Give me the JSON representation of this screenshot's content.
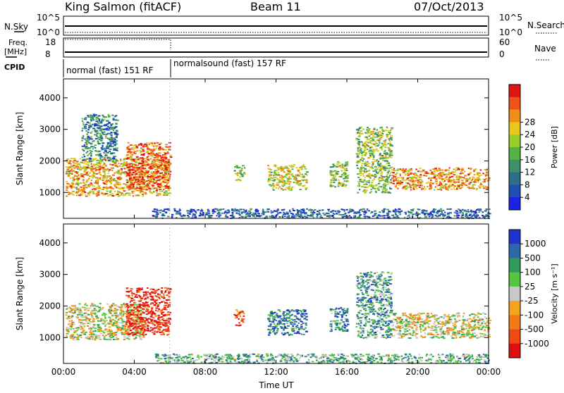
{
  "header": {
    "station": "King Salmon (fitACF)",
    "beam": "Beam 11",
    "date": "07/Oct/2013"
  },
  "top_panels": {
    "nsky_label": "N.Sky",
    "nsearch_label": "N.Search",
    "nsky_ticks": [
      "10^5",
      "10^0"
    ],
    "nsearch_ticks": [
      "10^5",
      "10^0"
    ],
    "freq_label": "Freq.",
    "freq_unit": "[MHz]",
    "freq_ticks": [
      "18",
      "8"
    ],
    "nave_label": "Nave",
    "nave_ticks": [
      "60",
      "0"
    ],
    "cpid_label": "CPID",
    "cpid_modes": [
      {
        "label": "normal (fast) 151 RF",
        "start_hour": 0,
        "end_hour": 6
      },
      {
        "label": "normalsound (fast) 157 RF",
        "start_hour": 6,
        "end_hour": 24
      }
    ]
  },
  "chart_data": [
    {
      "type": "heatmap",
      "name": "power",
      "ylabel": "Slant Range [km]",
      "xlabel": "",
      "xlim": [
        0,
        24
      ],
      "ylim": [
        180,
        4600
      ],
      "yticks": [
        "1000",
        "2000",
        "3000",
        "4000"
      ],
      "xticks": [
        "00:00",
        "04:00",
        "08:00",
        "12:00",
        "16:00",
        "20:00",
        "00:00"
      ],
      "colorbar": {
        "label": "Power [dB]",
        "ticks": [
          "4",
          "8",
          "12",
          "16",
          "20",
          "24",
          "28"
        ],
        "colors": [
          "#1a22e6",
          "#1e4fb0",
          "#2b6e8a",
          "#3e8f6a",
          "#52b246",
          "#9acc2a",
          "#e6c81e",
          "#ef8f1a",
          "#f0521a",
          "#e01414"
        ]
      },
      "echo_regions": [
        {
          "t0": 0.1,
          "t1": 6.0,
          "r0": 900,
          "r1": 2100,
          "level": 0.7
        },
        {
          "t0": 1.0,
          "t1": 3.0,
          "r0": 2000,
          "r1": 3500,
          "level": 0.3
        },
        {
          "t0": 3.5,
          "t1": 6.0,
          "r0": 1100,
          "r1": 2600,
          "level": 0.85
        },
        {
          "t0": 9.6,
          "t1": 10.2,
          "r0": 1400,
          "r1": 1900,
          "level": 0.5
        },
        {
          "t0": 11.5,
          "t1": 13.7,
          "r0": 1100,
          "r1": 1900,
          "level": 0.6
        },
        {
          "t0": 15.0,
          "t1": 16.0,
          "r0": 1200,
          "r1": 2000,
          "level": 0.5
        },
        {
          "t0": 16.5,
          "t1": 18.5,
          "r0": 1000,
          "r1": 3100,
          "level": 0.5
        },
        {
          "t0": 18.5,
          "t1": 24.0,
          "r0": 1100,
          "r1": 1800,
          "level": 0.75
        },
        {
          "t0": 5.0,
          "t1": 24.0,
          "r0": 200,
          "r1": 500,
          "level": 0.2
        }
      ]
    },
    {
      "type": "heatmap",
      "name": "velocity",
      "ylabel": "Slant Range [km]",
      "xlabel": "Time UT",
      "xlim": [
        0,
        24
      ],
      "ylim": [
        180,
        4600
      ],
      "yticks": [
        "1000",
        "2000",
        "3000",
        "4000"
      ],
      "xticks": [
        "00:00",
        "04:00",
        "08:00",
        "12:00",
        "16:00",
        "20:00",
        "00:00"
      ],
      "colorbar": {
        "label": "Velocity [m s⁻¹]",
        "ticks": [
          "1000",
          "500",
          "100",
          "25",
          "-25",
          "-100",
          "-500",
          "-1000"
        ],
        "colors": [
          "#2233cc",
          "#2e66aa",
          "#2f9a5e",
          "#54c640",
          "#c8c8c8",
          "#f5a21e",
          "#f07a14",
          "#ee4a12",
          "#e01010"
        ]
      },
      "echo_regions": [
        {
          "t0": 0.1,
          "t1": 4.5,
          "r0": 950,
          "r1": 2100,
          "level": 0.5
        },
        {
          "t0": 3.5,
          "t1": 6.0,
          "r0": 1100,
          "r1": 2600,
          "level": 0.92
        },
        {
          "t0": 9.6,
          "t1": 10.2,
          "r0": 1400,
          "r1": 1900,
          "level": 0.8
        },
        {
          "t0": 11.5,
          "t1": 13.7,
          "r0": 1100,
          "r1": 1900,
          "level": 0.2
        },
        {
          "t0": 15.0,
          "t1": 16.0,
          "r0": 1200,
          "r1": 2000,
          "level": 0.25
        },
        {
          "t0": 16.5,
          "t1": 18.5,
          "r0": 1000,
          "r1": 3100,
          "level": 0.3
        },
        {
          "t0": 18.5,
          "t1": 24.0,
          "r0": 1000,
          "r1": 1800,
          "level": 0.5
        },
        {
          "t0": 5.0,
          "t1": 24.0,
          "r0": 200,
          "r1": 500,
          "level": 0.35
        }
      ]
    }
  ]
}
